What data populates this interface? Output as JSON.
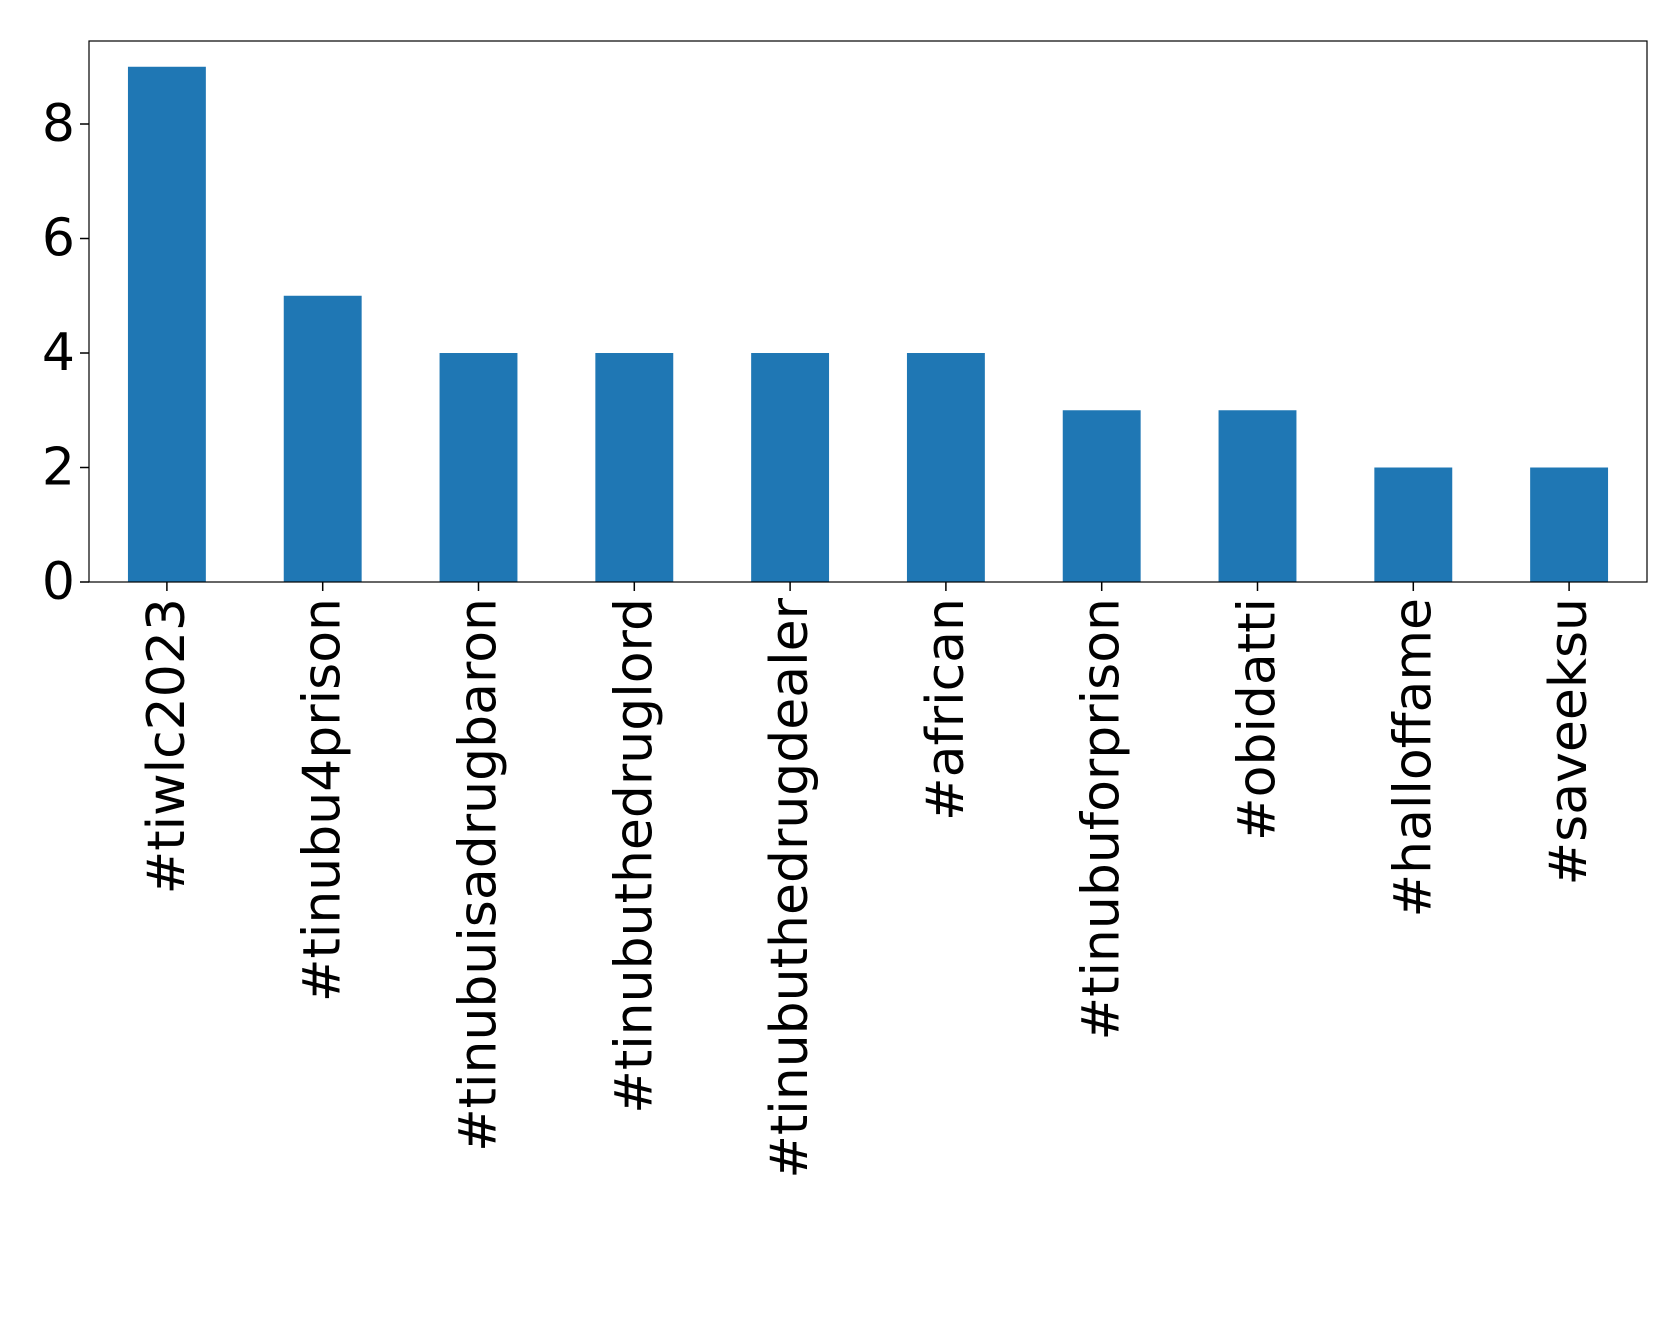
{
  "chart_data": {
    "type": "bar",
    "categories": [
      "#tiwlc2023",
      "#tinubu4prison",
      "#tinubuisadrugbaron",
      "#tinubuthedruglord",
      "#tinubuthedrugdealer",
      "#african",
      "#tinubuforprison",
      "#obidatti",
      "#halloffame",
      "#saveeksu"
    ],
    "values": [
      9,
      5,
      4,
      4,
      4,
      4,
      3,
      3,
      2,
      2
    ],
    "color": "#1f77b4",
    "ylim": [
      0,
      9.45
    ],
    "yticks": [
      0,
      2,
      4,
      6,
      8
    ],
    "grid": false
  }
}
